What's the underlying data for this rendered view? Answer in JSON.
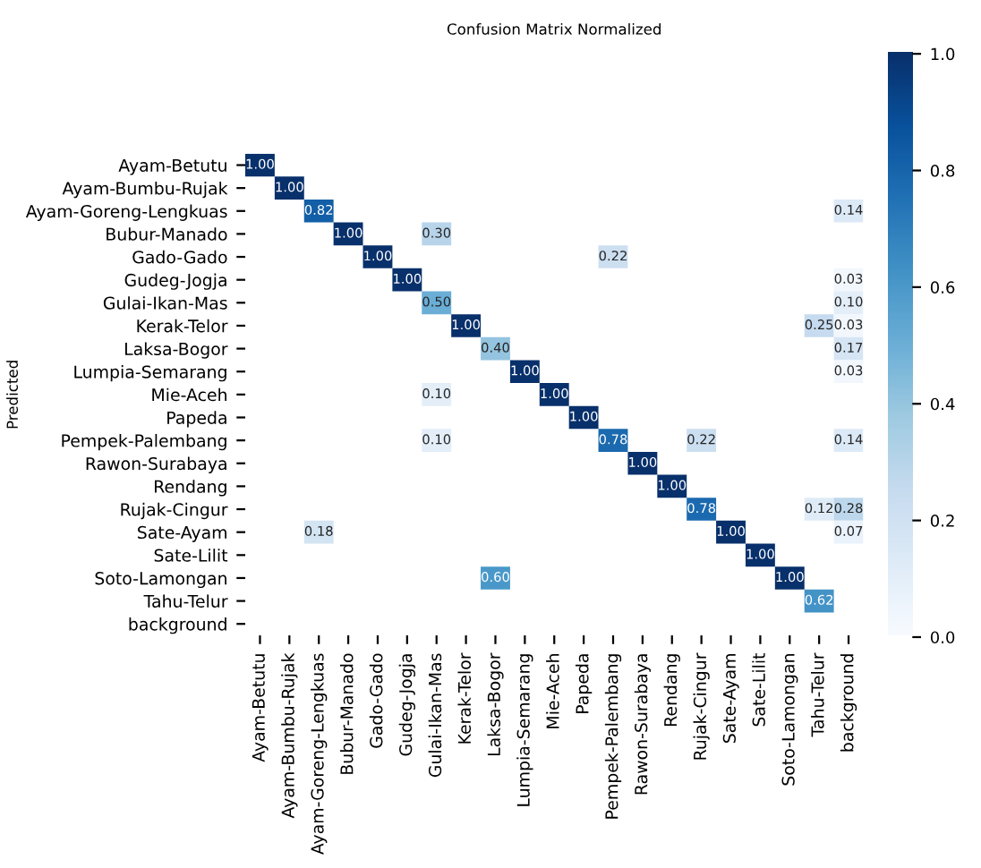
{
  "chart_data": {
    "type": "heatmap",
    "title": "Confusion Matrix Normalized",
    "ylabel": "Predicted",
    "categories": [
      "Ayam-Betutu",
      "Ayam-Bumbu-Rujak",
      "Ayam-Goreng-Lengkuas",
      "Bubur-Manado",
      "Gado-Gado",
      "Gudeg-Jogja",
      "Gulai-Ikan-Mas",
      "Kerak-Telor",
      "Laksa-Bogor",
      "Lumpia-Semarang",
      "Mie-Aceh",
      "Papeda",
      "Pempek-Palembang",
      "Rawon-Surabaya",
      "Rendang",
      "Rujak-Cingur",
      "Sate-Ayam",
      "Sate-Lilit",
      "Soto-Lamongan",
      "Tahu-Telur",
      "background"
    ],
    "y_categories": [
      "Ayam-Betutu",
      "Ayam-Bumbu-Rujak",
      "Ayam-Goreng-Lengkuas",
      "Bubur-Manado",
      "Gado-Gado",
      "Gudeg-Jogja",
      "Gulai-Ikan-Mas",
      "Kerak-Telor",
      "Laksa-Bogor",
      "Lumpia-Semarang",
      "Mie-Aceh",
      "Papeda",
      "Pempek-Palembang",
      "Rawon-Surabaya",
      "Rendang",
      "Rujak-Cingur",
      "Sate-Ayam",
      "Sate-Lilit",
      "Soto-Lamongan",
      "Tahu-Telur",
      "background"
    ],
    "cells": [
      [
        1.0,
        null,
        null,
        null,
        null,
        null,
        null,
        null,
        null,
        null,
        null,
        null,
        null,
        null,
        null,
        null,
        null,
        null,
        null,
        null,
        null
      ],
      [
        null,
        1.0,
        null,
        null,
        null,
        null,
        null,
        null,
        null,
        null,
        null,
        null,
        null,
        null,
        null,
        null,
        null,
        null,
        null,
        null,
        null
      ],
      [
        null,
        null,
        0.82,
        null,
        null,
        null,
        null,
        null,
        null,
        null,
        null,
        null,
        null,
        null,
        null,
        null,
        null,
        null,
        null,
        null,
        0.14
      ],
      [
        null,
        null,
        null,
        1.0,
        null,
        null,
        0.3,
        null,
        null,
        null,
        null,
        null,
        null,
        null,
        null,
        null,
        null,
        null,
        null,
        null,
        null
      ],
      [
        null,
        null,
        null,
        null,
        1.0,
        null,
        null,
        null,
        null,
        null,
        null,
        null,
        0.22,
        null,
        null,
        null,
        null,
        null,
        null,
        null,
        null
      ],
      [
        null,
        null,
        null,
        null,
        null,
        1.0,
        null,
        null,
        null,
        null,
        null,
        null,
        null,
        null,
        null,
        null,
        null,
        null,
        null,
        null,
        0.03
      ],
      [
        null,
        null,
        null,
        null,
        null,
        null,
        0.5,
        null,
        null,
        null,
        null,
        null,
        null,
        null,
        null,
        null,
        null,
        null,
        null,
        null,
        0.1
      ],
      [
        null,
        null,
        null,
        null,
        null,
        null,
        null,
        1.0,
        null,
        null,
        null,
        null,
        null,
        null,
        null,
        null,
        null,
        null,
        null,
        0.25,
        0.03
      ],
      [
        null,
        null,
        null,
        null,
        null,
        null,
        null,
        null,
        0.4,
        null,
        null,
        null,
        null,
        null,
        null,
        null,
        null,
        null,
        null,
        null,
        0.17
      ],
      [
        null,
        null,
        null,
        null,
        null,
        null,
        null,
        null,
        null,
        1.0,
        null,
        null,
        null,
        null,
        null,
        null,
        null,
        null,
        null,
        null,
        0.03
      ],
      [
        null,
        null,
        null,
        null,
        null,
        null,
        0.1,
        null,
        null,
        null,
        1.0,
        null,
        null,
        null,
        null,
        null,
        null,
        null,
        null,
        null,
        null
      ],
      [
        null,
        null,
        null,
        null,
        null,
        null,
        null,
        null,
        null,
        null,
        null,
        1.0,
        null,
        null,
        null,
        null,
        null,
        null,
        null,
        null,
        null
      ],
      [
        null,
        null,
        null,
        null,
        null,
        null,
        0.1,
        null,
        null,
        null,
        null,
        null,
        0.78,
        null,
        null,
        0.22,
        null,
        null,
        null,
        null,
        0.14
      ],
      [
        null,
        null,
        null,
        null,
        null,
        null,
        null,
        null,
        null,
        null,
        null,
        null,
        null,
        1.0,
        null,
        null,
        null,
        null,
        null,
        null,
        null
      ],
      [
        null,
        null,
        null,
        null,
        null,
        null,
        null,
        null,
        null,
        null,
        null,
        null,
        null,
        null,
        1.0,
        null,
        null,
        null,
        null,
        null,
        null
      ],
      [
        null,
        null,
        null,
        null,
        null,
        null,
        null,
        null,
        null,
        null,
        null,
        null,
        null,
        null,
        null,
        0.78,
        null,
        null,
        null,
        0.12,
        0.28
      ],
      [
        null,
        null,
        0.18,
        null,
        null,
        null,
        null,
        null,
        null,
        null,
        null,
        null,
        null,
        null,
        null,
        null,
        1.0,
        null,
        null,
        null,
        0.07
      ],
      [
        null,
        null,
        null,
        null,
        null,
        null,
        null,
        null,
        null,
        null,
        null,
        null,
        null,
        null,
        null,
        null,
        null,
        1.0,
        null,
        null,
        null
      ],
      [
        null,
        null,
        null,
        null,
        null,
        null,
        null,
        null,
        0.6,
        null,
        null,
        null,
        null,
        null,
        null,
        null,
        null,
        null,
        1.0,
        null,
        null
      ],
      [
        null,
        null,
        null,
        null,
        null,
        null,
        null,
        null,
        null,
        null,
        null,
        null,
        null,
        null,
        null,
        null,
        null,
        null,
        null,
        0.62,
        null
      ],
      [
        null,
        null,
        null,
        null,
        null,
        null,
        null,
        null,
        null,
        null,
        null,
        null,
        null,
        null,
        null,
        null,
        null,
        null,
        null,
        null,
        null
      ]
    ],
    "cell_labels": [
      [
        "1.00",
        null,
        null,
        null,
        null,
        null,
        null,
        null,
        null,
        null,
        null,
        null,
        null,
        null,
        null,
        null,
        null,
        null,
        null,
        null,
        null
      ],
      [
        null,
        "1.00",
        null,
        null,
        null,
        null,
        null,
        null,
        null,
        null,
        null,
        null,
        null,
        null,
        null,
        null,
        null,
        null,
        null,
        null,
        null
      ],
      [
        null,
        null,
        "0.82",
        null,
        null,
        null,
        null,
        null,
        null,
        null,
        null,
        null,
        null,
        null,
        null,
        null,
        null,
        null,
        null,
        null,
        "0.14"
      ],
      [
        null,
        null,
        null,
        "1.00",
        null,
        null,
        "0.30",
        null,
        null,
        null,
        null,
        null,
        null,
        null,
        null,
        null,
        null,
        null,
        null,
        null,
        null
      ],
      [
        null,
        null,
        null,
        null,
        "1.00",
        null,
        null,
        null,
        null,
        null,
        null,
        null,
        "0.22",
        null,
        null,
        null,
        null,
        null,
        null,
        null,
        null
      ],
      [
        null,
        null,
        null,
        null,
        null,
        "1.00",
        null,
        null,
        null,
        null,
        null,
        null,
        null,
        null,
        null,
        null,
        null,
        null,
        null,
        null,
        "0.03"
      ],
      [
        null,
        null,
        null,
        null,
        null,
        null,
        "0.50",
        null,
        null,
        null,
        null,
        null,
        null,
        null,
        null,
        null,
        null,
        null,
        null,
        null,
        "0.10"
      ],
      [
        null,
        null,
        null,
        null,
        null,
        null,
        null,
        "1.00",
        null,
        null,
        null,
        null,
        null,
        null,
        null,
        null,
        null,
        null,
        null,
        "0.25",
        "0.03"
      ],
      [
        null,
        null,
        null,
        null,
        null,
        null,
        null,
        null,
        "0.40",
        null,
        null,
        null,
        null,
        null,
        null,
        null,
        null,
        null,
        null,
        null,
        "0.17"
      ],
      [
        null,
        null,
        null,
        null,
        null,
        null,
        null,
        null,
        null,
        "1.00",
        null,
        null,
        null,
        null,
        null,
        null,
        null,
        null,
        null,
        null,
        "0.03"
      ],
      [
        null,
        null,
        null,
        null,
        null,
        null,
        "0.10",
        null,
        null,
        null,
        "1.00",
        null,
        null,
        null,
        null,
        null,
        null,
        null,
        null,
        null,
        null
      ],
      [
        null,
        null,
        null,
        null,
        null,
        null,
        null,
        null,
        null,
        null,
        null,
        "1.00",
        null,
        null,
        null,
        null,
        null,
        null,
        null,
        null,
        null
      ],
      [
        null,
        null,
        null,
        null,
        null,
        null,
        "0.10",
        null,
        null,
        null,
        null,
        null,
        "0.78",
        null,
        null,
        "0.22",
        null,
        null,
        null,
        null,
        "0.14"
      ],
      [
        null,
        null,
        null,
        null,
        null,
        null,
        null,
        null,
        null,
        null,
        null,
        null,
        null,
        "1.00",
        null,
        null,
        null,
        null,
        null,
        null,
        null
      ],
      [
        null,
        null,
        null,
        null,
        null,
        null,
        null,
        null,
        null,
        null,
        null,
        null,
        null,
        null,
        "1.00",
        null,
        null,
        null,
        null,
        null,
        null
      ],
      [
        null,
        null,
        null,
        null,
        null,
        null,
        null,
        null,
        null,
        null,
        null,
        null,
        null,
        null,
        null,
        "0.78",
        null,
        null,
        null,
        "0.12",
        "0.28"
      ],
      [
        null,
        null,
        "0.18",
        null,
        null,
        null,
        null,
        null,
        null,
        null,
        null,
        null,
        null,
        null,
        null,
        null,
        "1.00",
        null,
        null,
        null,
        "0.07"
      ],
      [
        null,
        null,
        null,
        null,
        null,
        null,
        null,
        null,
        null,
        null,
        null,
        null,
        null,
        null,
        null,
        null,
        null,
        "1.00",
        null,
        null,
        null
      ],
      [
        null,
        null,
        null,
        null,
        null,
        null,
        null,
        null,
        "0.60",
        null,
        null,
        null,
        null,
        null,
        null,
        null,
        null,
        null,
        "1.00",
        null,
        null
      ],
      [
        null,
        null,
        null,
        null,
        null,
        null,
        null,
        null,
        null,
        null,
        null,
        null,
        null,
        null,
        null,
        null,
        null,
        null,
        null,
        "0.62",
        null
      ],
      [
        null,
        null,
        null,
        null,
        null,
        null,
        null,
        null,
        null,
        null,
        null,
        null,
        null,
        null,
        null,
        null,
        null,
        null,
        null,
        null,
        null
      ]
    ],
    "data_labels": true,
    "clim": [
      0,
      1
    ],
    "cticks": [
      {
        "value": 0,
        "label": "0.0"
      },
      {
        "value": 0.2,
        "label": "0.2"
      },
      {
        "value": 0.4,
        "label": "0.4"
      },
      {
        "value": 0.6,
        "label": "0.6"
      },
      {
        "value": 0.8,
        "label": "0.8"
      },
      {
        "value": 1,
        "label": "1.0"
      }
    ]
  }
}
